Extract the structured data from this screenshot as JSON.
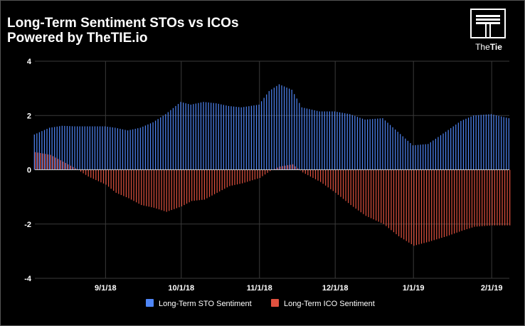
{
  "title": "Long-Term Sentiment STOs vs ICOs",
  "subtitle": "Powered by TheTIE.io",
  "logo": {
    "text_the": "The",
    "text_tie": "Tie",
    "icon": "the-tie-logo-icon"
  },
  "colors": {
    "background": "#000000",
    "sto": "#4f86f7",
    "ico": "#e0513f",
    "grid": "#3a3a3a",
    "axis_text": "#ffffff"
  },
  "chart_data": {
    "type": "bar",
    "title": "Long-Term Sentiment STOs vs ICOs",
    "subtitle": "Powered by TheTIE.io",
    "x_start": "2018-08-04",
    "x_end": "2019-02-08",
    "x_ticks": [
      {
        "label": "9/1/18",
        "date": "2018-09-01"
      },
      {
        "label": "10/1/18",
        "date": "2018-10-01"
      },
      {
        "label": "11/1/18",
        "date": "2018-11-01"
      },
      {
        "label": "12/1/18",
        "date": "2018-12-01"
      },
      {
        "label": "1/1/19",
        "date": "2019-01-01"
      },
      {
        "label": "2/1/19",
        "date": "2019-02-01"
      }
    ],
    "y_ticks": [
      4,
      2,
      0,
      -2,
      -4
    ],
    "ylim": [
      -4,
      4
    ],
    "grid": true,
    "legend_position": "bottom",
    "series": [
      {
        "name": "Long-Term STO Sentiment",
        "color": "#4f86f7",
        "points": [
          [
            "2018-08-04",
            1.3
          ],
          [
            "2018-08-10",
            1.55
          ],
          [
            "2018-08-15",
            1.62
          ],
          [
            "2018-08-20",
            1.6
          ],
          [
            "2018-08-25",
            1.6
          ],
          [
            "2018-09-01",
            1.6
          ],
          [
            "2018-09-05",
            1.55
          ],
          [
            "2018-09-10",
            1.45
          ],
          [
            "2018-09-15",
            1.55
          ],
          [
            "2018-09-20",
            1.75
          ],
          [
            "2018-09-25",
            2.05
          ],
          [
            "2018-10-01",
            2.5
          ],
          [
            "2018-10-05",
            2.4
          ],
          [
            "2018-10-10",
            2.5
          ],
          [
            "2018-10-15",
            2.45
          ],
          [
            "2018-10-20",
            2.35
          ],
          [
            "2018-10-25",
            2.3
          ],
          [
            "2018-11-01",
            2.4
          ],
          [
            "2018-11-05",
            2.9
          ],
          [
            "2018-11-09",
            3.15
          ],
          [
            "2018-11-14",
            2.95
          ],
          [
            "2018-11-18",
            2.3
          ],
          [
            "2018-11-25",
            2.15
          ],
          [
            "2018-12-01",
            2.15
          ],
          [
            "2018-12-07",
            2.05
          ],
          [
            "2018-12-13",
            1.85
          ],
          [
            "2018-12-20",
            1.9
          ],
          [
            "2018-12-26",
            1.4
          ],
          [
            "2019-01-01",
            0.9
          ],
          [
            "2019-01-07",
            0.95
          ],
          [
            "2019-01-14",
            1.4
          ],
          [
            "2019-01-20",
            1.8
          ],
          [
            "2019-01-25",
            2.0
          ],
          [
            "2019-02-01",
            2.05
          ],
          [
            "2019-02-08",
            1.9
          ]
        ]
      },
      {
        "name": "Long-Term ICO Sentiment",
        "color": "#e0513f",
        "points": [
          [
            "2018-08-04",
            0.65
          ],
          [
            "2018-08-10",
            0.55
          ],
          [
            "2018-08-15",
            0.3
          ],
          [
            "2018-08-20",
            0.05
          ],
          [
            "2018-08-25",
            -0.25
          ],
          [
            "2018-09-01",
            -0.55
          ],
          [
            "2018-09-05",
            -0.85
          ],
          [
            "2018-09-10",
            -1.05
          ],
          [
            "2018-09-15",
            -1.3
          ],
          [
            "2018-09-20",
            -1.4
          ],
          [
            "2018-09-25",
            -1.55
          ],
          [
            "2018-10-01",
            -1.35
          ],
          [
            "2018-10-05",
            -1.15
          ],
          [
            "2018-10-10",
            -1.1
          ],
          [
            "2018-10-15",
            -0.85
          ],
          [
            "2018-10-20",
            -0.6
          ],
          [
            "2018-10-25",
            -0.5
          ],
          [
            "2018-11-01",
            -0.3
          ],
          [
            "2018-11-05",
            -0.05
          ],
          [
            "2018-11-09",
            0.12
          ],
          [
            "2018-11-14",
            0.2
          ],
          [
            "2018-11-18",
            -0.1
          ],
          [
            "2018-11-25",
            -0.45
          ],
          [
            "2018-12-01",
            -0.85
          ],
          [
            "2018-12-07",
            -1.3
          ],
          [
            "2018-12-13",
            -1.7
          ],
          [
            "2018-12-20",
            -2.0
          ],
          [
            "2018-12-26",
            -2.45
          ],
          [
            "2019-01-01",
            -2.8
          ],
          [
            "2019-01-07",
            -2.65
          ],
          [
            "2019-01-14",
            -2.45
          ],
          [
            "2019-01-20",
            -2.25
          ],
          [
            "2019-01-25",
            -2.1
          ],
          [
            "2019-02-01",
            -2.05
          ],
          [
            "2019-02-08",
            -2.05
          ]
        ]
      }
    ]
  }
}
